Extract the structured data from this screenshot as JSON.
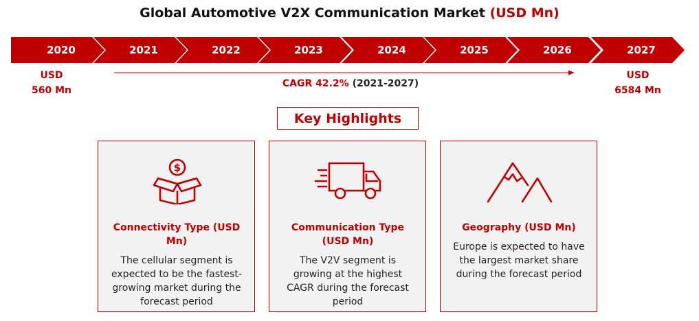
{
  "title": {
    "main": "Global Automotive V2X Communication Market",
    "unit": "(USD Mn)"
  },
  "timeline": {
    "years": [
      "2020",
      "2021",
      "2022",
      "2023",
      "2024",
      "2025",
      "2026",
      "2027"
    ]
  },
  "start_value": {
    "line1": "USD",
    "line2": "560 Mn"
  },
  "end_value": {
    "line1": "USD",
    "line2": "6584 Mn"
  },
  "cagr": {
    "label": "CAGR 42.2%",
    "period": "(2021-2027)"
  },
  "key_highlights": {
    "heading": "Key Highlights"
  },
  "cards": [
    {
      "icon": "money-box-icon",
      "title": "Connectivity Type (USD Mn)",
      "description": "The cellular segment is expected to be the fastest-growing market during the forecast period"
    },
    {
      "icon": "truck-icon",
      "title": "Communication Type (USD Mn)",
      "description": "The V2V segment is growing at the highest CAGR during the forecast period"
    },
    {
      "icon": "mountain-icon",
      "title": "Geography (USD Mn)",
      "description": "Europe is expected to have the largest market share during the forecast period"
    }
  ],
  "colors": {
    "accent": "#c00000",
    "card_bg": "#f2f2f2"
  }
}
